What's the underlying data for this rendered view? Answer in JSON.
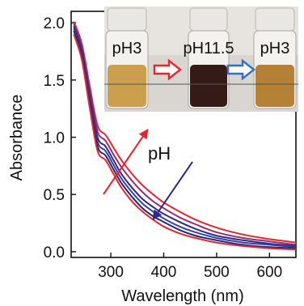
{
  "chart_data": {
    "type": "line",
    "xlabel": "Wavelength (nm)",
    "ylabel": "Absorbance",
    "xlim": [
      225,
      650
    ],
    "ylim": [
      -0.05,
      2.1
    ],
    "x_ticks": [
      300,
      400,
      500,
      600
    ],
    "y_ticks": [
      0.0,
      0.5,
      1.0,
      1.5,
      2.0
    ],
    "x_tick_labels": [
      "300",
      "400",
      "500",
      "600"
    ],
    "y_tick_labels": [
      "0.0",
      "0.5",
      "1.0",
      "1.5",
      "2.0"
    ],
    "grid": false,
    "x": [
      230,
      245,
      260,
      275,
      290,
      305,
      320,
      340,
      360,
      380,
      400,
      430,
      460,
      500,
      550,
      600,
      650
    ],
    "series": [
      {
        "color": "#e8242c",
        "values": [
          2.01,
          1.82,
          1.45,
          1.1,
          1.02,
          0.91,
          0.8,
          0.68,
          0.58,
          0.5,
          0.43,
          0.35,
          0.28,
          0.21,
          0.15,
          0.11,
          0.08
        ]
      },
      {
        "color": "#9a2a6a",
        "values": [
          1.99,
          1.79,
          1.41,
          1.05,
          0.97,
          0.85,
          0.74,
          0.62,
          0.52,
          0.44,
          0.38,
          0.3,
          0.24,
          0.17,
          0.12,
          0.09,
          0.06
        ]
      },
      {
        "color": "#2e2a8c",
        "values": [
          1.97,
          1.76,
          1.37,
          1.0,
          0.92,
          0.8,
          0.68,
          0.56,
          0.46,
          0.39,
          0.33,
          0.26,
          0.2,
          0.14,
          0.1,
          0.07,
          0.05
        ]
      },
      {
        "color": "#3a3fa0",
        "values": [
          1.95,
          1.73,
          1.33,
          0.96,
          0.88,
          0.76,
          0.64,
          0.52,
          0.42,
          0.35,
          0.29,
          0.22,
          0.17,
          0.12,
          0.08,
          0.06,
          0.04
        ]
      },
      {
        "color": "#1f2a7a",
        "values": [
          1.93,
          1.71,
          1.3,
          0.92,
          0.84,
          0.72,
          0.6,
          0.48,
          0.38,
          0.31,
          0.26,
          0.19,
          0.14,
          0.1,
          0.06,
          0.04,
          0.03
        ]
      },
      {
        "color": "#e8242c",
        "values": [
          1.9,
          1.68,
          1.26,
          0.88,
          0.8,
          0.68,
          0.56,
          0.44,
          0.35,
          0.28,
          0.22,
          0.16,
          0.12,
          0.08,
          0.05,
          0.03,
          0.02
        ]
      }
    ],
    "annotations": {
      "label": "pH",
      "arrow_up_color": "#e8242c",
      "arrow_down_color": "#2e2a8c"
    },
    "inset_photo": {
      "labels": [
        "pH3",
        "pH11.5",
        "pH3"
      ],
      "arrow_1_color": "#e8242c",
      "arrow_2_color": "#2f6fc4",
      "vial_colors": [
        "#c89a45",
        "#2a0f08",
        "#b07a2a"
      ]
    }
  }
}
